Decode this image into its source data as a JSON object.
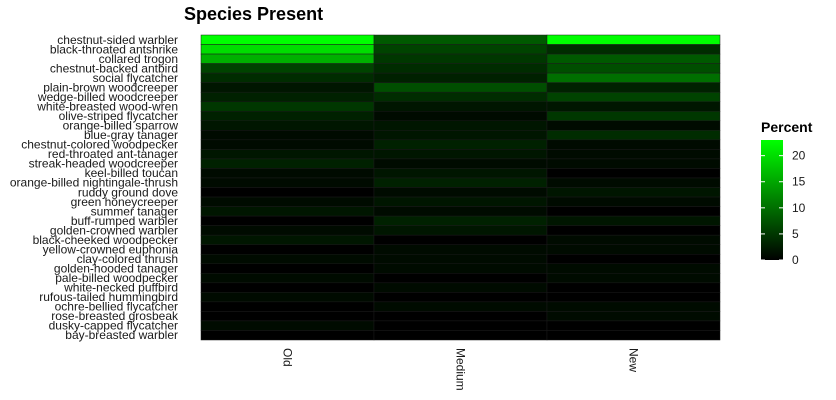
{
  "chart_data": {
    "type": "heatmap",
    "title": "Species Present",
    "xlabel": "",
    "ylabel": "",
    "x_categories": [
      "Old",
      "Medium",
      "New"
    ],
    "y_categories": [
      "chestnut-sided warbler",
      "black-throated antshrike",
      "collared trogon",
      "chestnut-backed antbird",
      "social flycatcher",
      "plain-brown woodcreeper",
      "wedge-billed woodcreeper",
      "white-breasted wood-wren",
      "olive-striped flycatcher",
      "orange-billed sparrow",
      "blue-gray tanager",
      "chestnut-colored woodpecker",
      "red-throated ant-tanager",
      "streak-headed woodcreeper",
      "keel-billed toucan",
      "orange-billed nightingale-thrush",
      "ruddy ground dove",
      "green honeycreeper",
      "summer tanager",
      "buff-rumped warbler",
      "golden-crowned warbler",
      "black-cheeked woodpecker",
      "yellow-crowned euphonia",
      "clay-colored thrush",
      "golden-hooded tanager",
      "pale-billed woodpecker",
      "white-necked puffbird",
      "rufous-tailed hummingbird",
      "ochre-bellied flycatcher",
      "rose-breasted grosbeak",
      "dusky-capped flycatcher",
      "bay-breasted warbler"
    ],
    "values": [
      [
        23,
        8,
        23
      ],
      [
        20,
        6,
        4
      ],
      [
        16,
        5,
        8
      ],
      [
        6,
        4,
        7
      ],
      [
        4,
        3,
        10
      ],
      [
        2,
        7,
        3
      ],
      [
        3,
        4,
        6
      ],
      [
        5,
        2,
        2
      ],
      [
        3,
        1,
        5
      ],
      [
        2,
        2,
        1
      ],
      [
        1,
        2,
        4
      ],
      [
        1,
        3,
        1
      ],
      [
        2,
        2,
        1
      ],
      [
        3,
        1,
        1
      ],
      [
        1,
        2,
        0
      ],
      [
        1,
        3,
        1
      ],
      [
        0,
        1,
        2
      ],
      [
        1,
        2,
        1
      ],
      [
        2,
        1,
        0
      ],
      [
        0,
        3,
        2
      ],
      [
        1,
        2,
        0
      ],
      [
        2,
        0,
        1
      ],
      [
        0,
        1,
        1
      ],
      [
        1,
        1,
        0
      ],
      [
        0,
        1,
        1
      ],
      [
        1,
        0,
        1
      ],
      [
        0,
        1,
        0
      ],
      [
        1,
        0,
        0
      ],
      [
        0,
        1,
        1
      ],
      [
        0,
        0,
        1
      ],
      [
        1,
        0,
        0
      ],
      [
        0,
        0,
        0
      ]
    ],
    "legend": {
      "title": "Percent",
      "ticks": [
        0,
        5,
        10,
        15,
        20
      ],
      "range": [
        0,
        23
      ],
      "low_color": "#000000",
      "high_color": "#00ff00"
    },
    "legend_position": "right",
    "grid": false
  }
}
